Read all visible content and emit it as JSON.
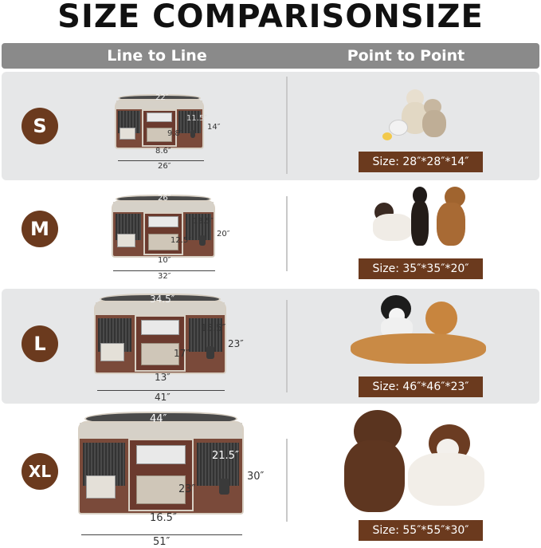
{
  "title": "SIZE COMPARISONSIZE",
  "header": {
    "left": "Line to Line",
    "right": "Point to Point"
  },
  "colors": {
    "brown": "#6b3a1e",
    "header_gray": "#8a8a8a",
    "row_gray": "#e6e7e8"
  },
  "sizes": [
    {
      "letter": "S",
      "label": "Size: 28″*28″*14″",
      "dims": {
        "top": "22″",
        "side": "11.5″",
        "door": "9.8″",
        "floor": "8.6″",
        "height": "14″",
        "width": "26″"
      }
    },
    {
      "letter": "M",
      "label": "Size: 35″*35″*20″",
      "dims": {
        "top": "26″",
        "side": "13.5″",
        "door": "12.5″",
        "floor": "10″",
        "height": "20″",
        "width": "32″"
      }
    },
    {
      "letter": "L",
      "label": "Size: 46″*46″*23″",
      "dims": {
        "top": "34.5″",
        "side": "15.5″",
        "door": "17″",
        "floor": "13″",
        "height": "23″",
        "width": "41″"
      }
    },
    {
      "letter": "XL",
      "label": "Size: 55″*55″*30″",
      "dims": {
        "top": "44″",
        "side": "21.5″",
        "door": "23″",
        "floor": "16.5″",
        "height": "30″",
        "width": "51″"
      }
    }
  ]
}
